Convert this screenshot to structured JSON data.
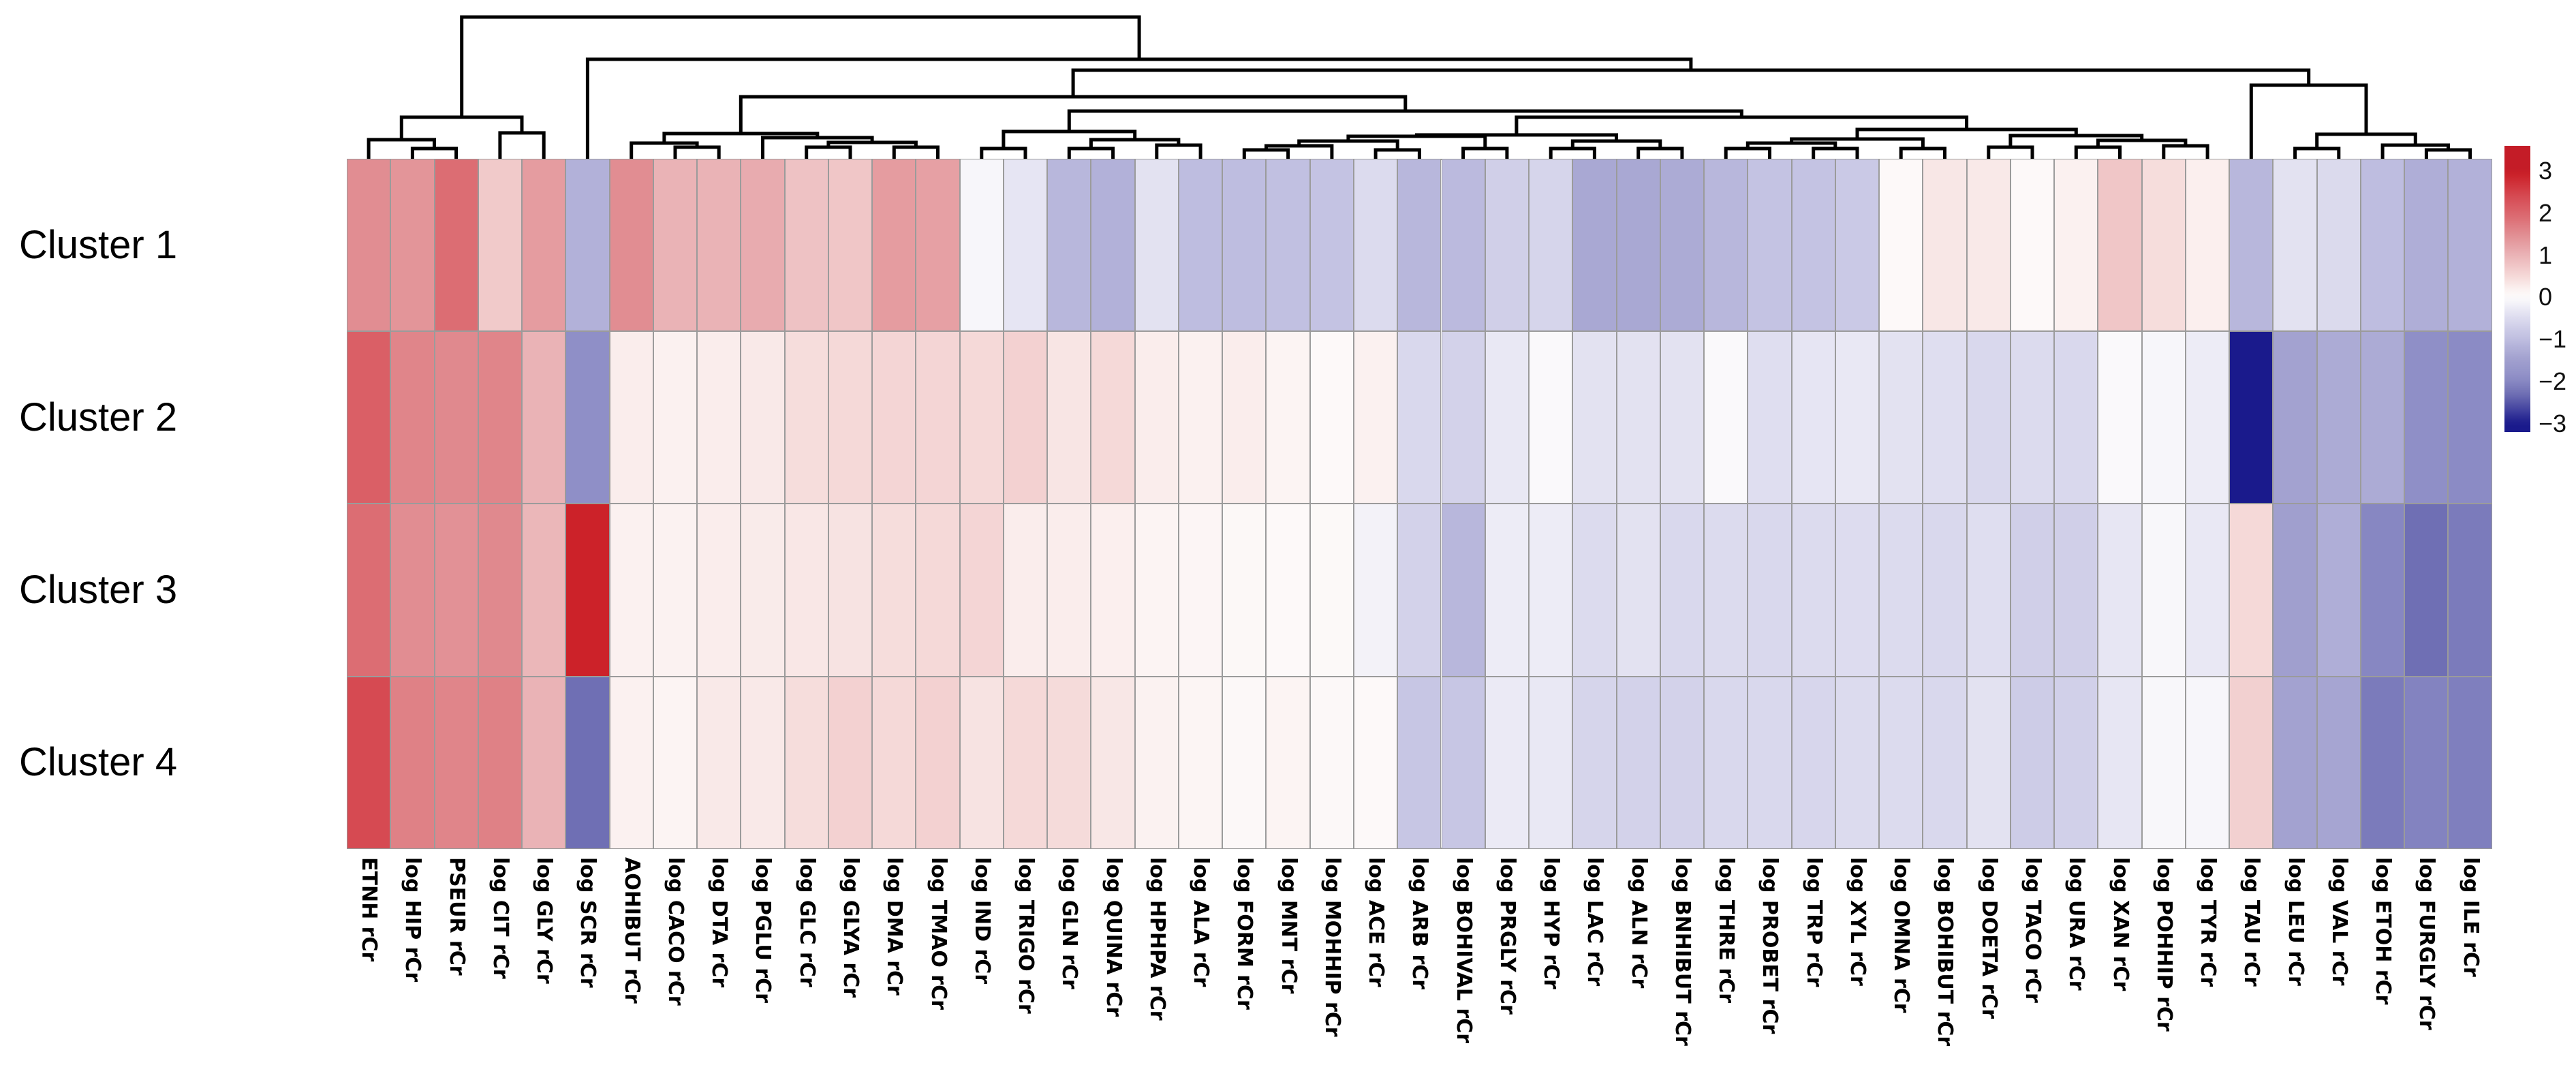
{
  "figure": {
    "kind": "clustered-heatmap",
    "background_color": "#ffffff",
    "grid_color": "#9b9b9b",
    "dendrogram_color": "#000000"
  },
  "chart_data": {
    "type": "heatmap",
    "title": "",
    "rows": [
      "Cluster 1",
      "Cluster 2",
      "Cluster 3",
      "Cluster 4"
    ],
    "columns": [
      "ETNH rCr",
      "log HIP rCr",
      "PSEUR rCr",
      "log CIT rCr",
      "log GLY rCr",
      "log SCR rCr",
      "AOHIBUT rCr",
      "log CACO rCr",
      "log DTA rCr",
      "log PGLU rCr",
      "log GLC rCr",
      "log GLYA rCr",
      "log DMA rCr",
      "log TMAO rCr",
      "log IND rCr",
      "log TRIGO rCr",
      "log GLN rCr",
      "log QUINA rCr",
      "log HPHPA rCr",
      "log ALA rCr",
      "log FORM rCr",
      "log MNT rCr",
      "log MOHHIP rCr",
      "log ACE rCr",
      "log ARB rCr",
      "log BOHIVAL rCr",
      "log PRGLY rCr",
      "log HYP rCr",
      "log LAC rCr",
      "log ALN rCr",
      "log BNHIBUT rCr",
      "log THRE rCr",
      "log PROBET rCr",
      "log TRP rCr",
      "log XYL rCr",
      "log OMNA rCr",
      "log BOHIBUT rCr",
      "log DOETA rCr",
      "log TACO rCr",
      "log URA rCr",
      "log XAN rCr",
      "log POHHIP rCr",
      "log TYR rCr",
      "log TAU rCr",
      "log LEU rCr",
      "log VAL rCr",
      "log ETOH rCr",
      "log FURGLY rCr",
      "log ILE rCr"
    ],
    "values": [
      [
        1.5,
        1.4,
        1.9,
        0.7,
        1.3,
        -1.2,
        1.5,
        1.0,
        1.0,
        1.1,
        0.8,
        0.75,
        1.3,
        1.25,
        -0.1,
        -0.35,
        -1.1,
        -1.2,
        -0.4,
        -1.0,
        -1.0,
        -0.95,
        -0.9,
        -0.5,
        -1.1,
        -1.05,
        -0.7,
        -0.6,
        -1.35,
        -1.35,
        -1.3,
        -1.1,
        -0.9,
        -0.9,
        -0.8,
        0.05,
        0.33,
        0.3,
        0.05,
        0.2,
        0.75,
        0.45,
        0.22,
        -1.1,
        -0.4,
        -0.52,
        -1.0,
        -1.25,
        -1.2
      ],
      [
        2.1,
        1.6,
        1.55,
        1.6,
        1.0,
        -1.9,
        0.25,
        0.2,
        0.25,
        0.3,
        0.45,
        0.5,
        0.55,
        0.55,
        0.5,
        0.6,
        0.35,
        0.5,
        0.25,
        0.2,
        0.25,
        0.15,
        0.05,
        0.2,
        -0.55,
        -0.65,
        -0.3,
        -0.05,
        -0.4,
        -0.4,
        -0.4,
        -0.05,
        -0.45,
        -0.35,
        -0.3,
        -0.4,
        -0.45,
        -0.55,
        -0.5,
        -0.55,
        -0.05,
        -0.1,
        -0.25,
        -3.0,
        -1.45,
        -1.3,
        -1.3,
        -1.9,
        -1.95
      ],
      [
        1.9,
        1.5,
        1.45,
        1.55,
        0.95,
        2.9,
        0.2,
        0.18,
        0.25,
        0.28,
        0.32,
        0.38,
        0.45,
        0.5,
        0.55,
        0.25,
        0.25,
        0.22,
        0.15,
        0.12,
        0.08,
        0.05,
        0.06,
        -0.15,
        -0.65,
        -1.1,
        -0.25,
        -0.25,
        -0.5,
        -0.4,
        -0.55,
        -0.5,
        -0.55,
        -0.5,
        -0.48,
        -0.5,
        -0.55,
        -0.45,
        -0.7,
        -0.7,
        -0.33,
        -0.08,
        -0.3,
        0.5,
        -1.5,
        -1.25,
        -2.0,
        -2.3,
        -2.15
      ],
      [
        2.4,
        1.65,
        1.6,
        1.65,
        1.0,
        -2.3,
        0.2,
        0.15,
        0.3,
        0.3,
        0.45,
        0.6,
        0.5,
        0.6,
        0.38,
        0.5,
        0.48,
        0.33,
        0.18,
        0.13,
        0.07,
        0.15,
        0.07,
        0.05,
        -0.85,
        -0.85,
        -0.28,
        -0.3,
        -0.6,
        -0.65,
        -0.65,
        -0.55,
        -0.55,
        -0.58,
        -0.5,
        -0.5,
        -0.55,
        -0.4,
        -0.75,
        -0.68,
        -0.33,
        -0.08,
        -0.1,
        0.62,
        -1.45,
        -1.4,
        -2.15,
        -2.05,
        -2.1
      ]
    ],
    "value_range": [
      -3,
      3
    ],
    "colorbar_ticks": [
      "3",
      "2",
      "1",
      "0",
      "−1",
      "−2",
      "−3"
    ],
    "colorbar_tick_values": [
      3,
      2,
      1,
      0,
      -1,
      -2,
      -3
    ],
    "legend_position": "right",
    "grid": true,
    "color_scale_stops": [
      {
        "v": -3.0,
        "c": "#1a1a8c"
      },
      {
        "v": -2.3,
        "c": "#6f6fb4"
      },
      {
        "v": -1.9,
        "c": "#8f8fc7"
      },
      {
        "v": -1.5,
        "c": "#a09fce"
      },
      {
        "v": -1.0,
        "c": "#bebde0"
      },
      {
        "v": -0.5,
        "c": "#dcdbee"
      },
      {
        "v": -0.2,
        "c": "#f0eff7"
      },
      {
        "v": 0.0,
        "c": "#fdfcfc"
      },
      {
        "v": 0.2,
        "c": "#fbf1f0"
      },
      {
        "v": 0.5,
        "c": "#f5d9d8"
      },
      {
        "v": 1.0,
        "c": "#eab3b6"
      },
      {
        "v": 1.5,
        "c": "#e18d92"
      },
      {
        "v": 1.9,
        "c": "#dc6d73"
      },
      {
        "v": 2.4,
        "c": "#d64a52"
      },
      {
        "v": 2.9,
        "c": "#cc2229"
      },
      {
        "v": 3.0,
        "c": "#c41c27"
      }
    ],
    "column_dendrogram": {
      "leaf_prefix": "L",
      "merges": [
        [
          "L2",
          "L3",
          218
        ],
        [
          "L1",
          "M1",
          205
        ],
        [
          "L4",
          "L5",
          195
        ],
        [
          "M2",
          "M3",
          172
        ],
        [
          "L8",
          "L9",
          216
        ],
        [
          "L7",
          "M5",
          210
        ],
        [
          "L11",
          "L12",
          216
        ],
        [
          "L13",
          "L14",
          216
        ],
        [
          "M7",
          "M8",
          209
        ],
        [
          "L10",
          "M9",
          202
        ],
        [
          "M6",
          "M10",
          196
        ],
        [
          "L15",
          "L16",
          218
        ],
        [
          "L17",
          "L18",
          218
        ],
        [
          "L19",
          "L20",
          213
        ],
        [
          "M13",
          "M14",
          205
        ],
        [
          "M12",
          "M15",
          193
        ],
        [
          "L21",
          "L22",
          220
        ],
        [
          "M17",
          "L23",
          214
        ],
        [
          "L24",
          "L25",
          220
        ],
        [
          "M18",
          "M19",
          207
        ],
        [
          "L26",
          "L27",
          218
        ],
        [
          "M20",
          "M21",
          200
        ],
        [
          "L28",
          "L29",
          218
        ],
        [
          "L30",
          "L31",
          218
        ],
        [
          "M23",
          "M24",
          207
        ],
        [
          "M22",
          "M25",
          198
        ],
        [
          "L32",
          "L33",
          218
        ],
        [
          "L34",
          "L35",
          218
        ],
        [
          "M27",
          "M28",
          210
        ],
        [
          "L36",
          "L37",
          218
        ],
        [
          "M29",
          "M30",
          204
        ],
        [
          "L38",
          "L39",
          216
        ],
        [
          "L40",
          "L41",
          216
        ],
        [
          "L42",
          "L43",
          214
        ],
        [
          "M33",
          "M34",
          206
        ],
        [
          "M32",
          "M35",
          199
        ],
        [
          "M31",
          "M36",
          190
        ],
        [
          "M26",
          "M37",
          172
        ],
        [
          "M16",
          "M38",
          163
        ],
        [
          "M11",
          "M39",
          142
        ],
        [
          "L45",
          "L46",
          218
        ],
        [
          "L48",
          "L49",
          220
        ],
        [
          "L47",
          "M42",
          213
        ],
        [
          "M41",
          "M43",
          197
        ],
        [
          "L44",
          "M44",
          125
        ],
        [
          "M40",
          "M45",
          103
        ],
        [
          "L6",
          "M46",
          87
        ],
        [
          "M4",
          "M47",
          25
        ]
      ]
    }
  }
}
